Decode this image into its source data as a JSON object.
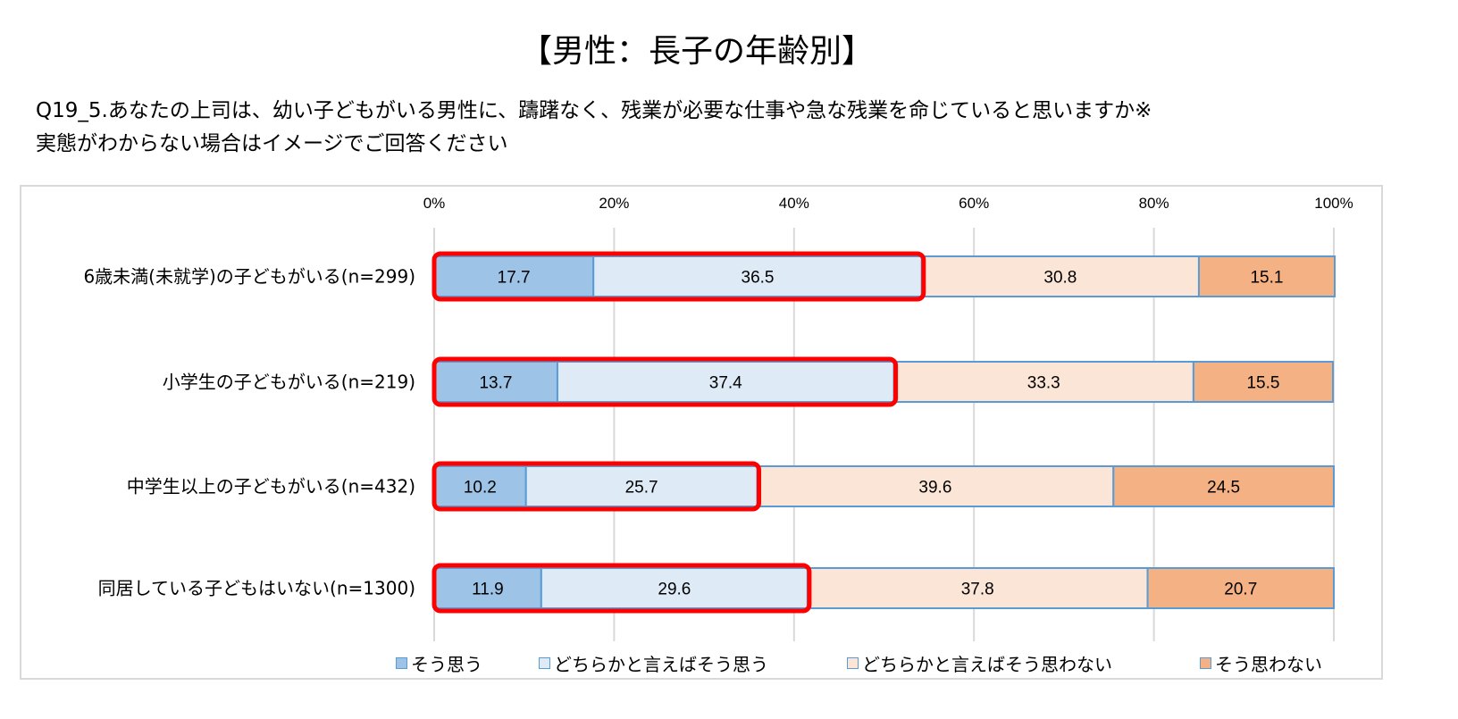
{
  "chart_data": {
    "type": "bar",
    "orientation": "horizontal-stacked-100",
    "title": "【男性：長子の年齢別】",
    "subtitle": [
      "Q19_5.あなたの上司は、幼い子どもがいる男性に、躊躇なく、残業が必要な仕事や急な残業を命じていると思いますか※",
      "実態がわからない場合はイメージでご回答ください"
    ],
    "categories": [
      "6歳未満(未就学)の子どもがいる(n=299)",
      "小学生の子どもがいる(n=219)",
      "中学生以上の子どもがいる(n=432)",
      "同居している子どもはいない(n=1300)"
    ],
    "series": [
      {
        "name": "そう思う",
        "color": "#9dc3e6",
        "values": [
          17.7,
          13.7,
          10.2,
          11.9
        ]
      },
      {
        "name": "どちらかと言えばそう思う",
        "color": "#deebf7",
        "values": [
          36.5,
          37.4,
          25.7,
          29.6
        ]
      },
      {
        "name": "どちらかと言えばそう思わない",
        "color": "#fbe5d6",
        "values": [
          30.8,
          33.3,
          39.6,
          37.8
        ]
      },
      {
        "name": "そう思わない",
        "color": "#f4b183",
        "values": [
          15.1,
          15.5,
          24.5,
          20.7
        ]
      }
    ],
    "xticks": [
      "0%",
      "20%",
      "40%",
      "60%",
      "80%",
      "100%"
    ],
    "xlim": [
      0,
      100
    ],
    "grid": true,
    "legend": "bottom",
    "highlight_series": [
      0,
      1
    ],
    "highlight_color": "#ff0000"
  }
}
